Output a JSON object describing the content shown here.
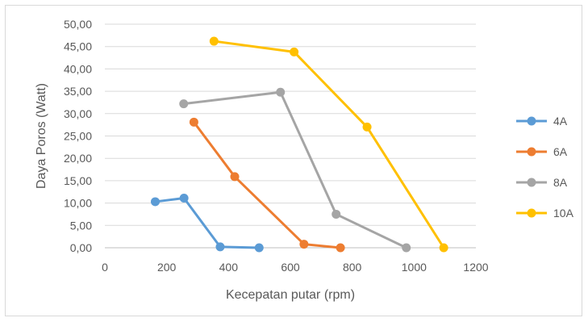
{
  "chart_data": {
    "type": "line",
    "title": "",
    "xlabel": "Kecepatan putar (rpm)",
    "ylabel": "Daya Poros (Watt)",
    "xlim": [
      0,
      1200
    ],
    "ylim": [
      0,
      50
    ],
    "x_ticks": [
      "0",
      "200",
      "400",
      "600",
      "800",
      "1000",
      "1200"
    ],
    "y_ticks": [
      "0,00",
      "5,00",
      "10,00",
      "15,00",
      "20,00",
      "25,00",
      "30,00",
      "35,00",
      "40,00",
      "45,00",
      "50,00"
    ],
    "grid": "horizontal",
    "legend_position": "right",
    "series": [
      {
        "name": "4A",
        "color": "#5B9BD5",
        "x": [
          163,
          256,
          373,
          499
        ],
        "y": [
          10.3,
          11.1,
          0.2,
          0.0
        ]
      },
      {
        "name": "6A",
        "color": "#ED7D31",
        "x": [
          288,
          420,
          644,
          762
        ],
        "y": [
          28.1,
          15.9,
          0.8,
          0.0
        ]
      },
      {
        "name": "8A",
        "color": "#A5A5A5",
        "x": [
          255,
          568,
          748,
          975
        ],
        "y": [
          32.2,
          34.8,
          7.5,
          0.0
        ]
      },
      {
        "name": "10A",
        "color": "#FFC000",
        "x": [
          353,
          612,
          848,
          1096
        ],
        "y": [
          46.2,
          43.8,
          27.0,
          0.0
        ]
      }
    ]
  }
}
